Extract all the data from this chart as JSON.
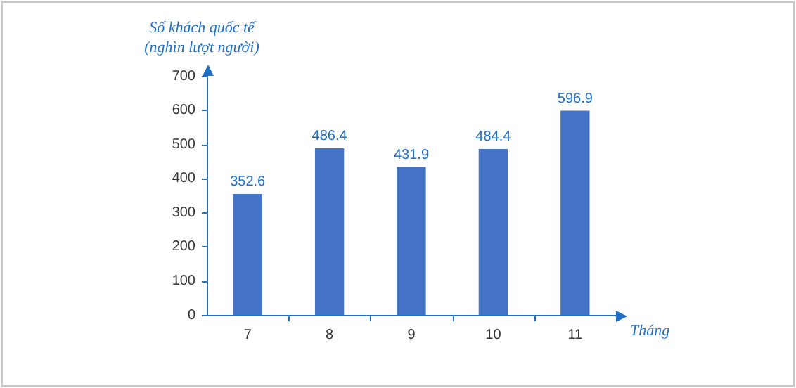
{
  "chart_data": {
    "type": "bar",
    "xlabel": "Tháng",
    "ylabel": "Số khách quốc tế\n(nghìn lượt người)",
    "categories": [
      "7",
      "8",
      "9",
      "10",
      "11"
    ],
    "values": [
      352.6,
      486.4,
      431.9,
      484.4,
      596.9
    ],
    "color": "#4472c4",
    "ylim": [
      0,
      700
    ],
    "yticks": [
      0,
      100,
      200,
      300,
      400,
      500,
      600,
      700
    ],
    "grid": false,
    "legend": false,
    "data_labels": true
  }
}
